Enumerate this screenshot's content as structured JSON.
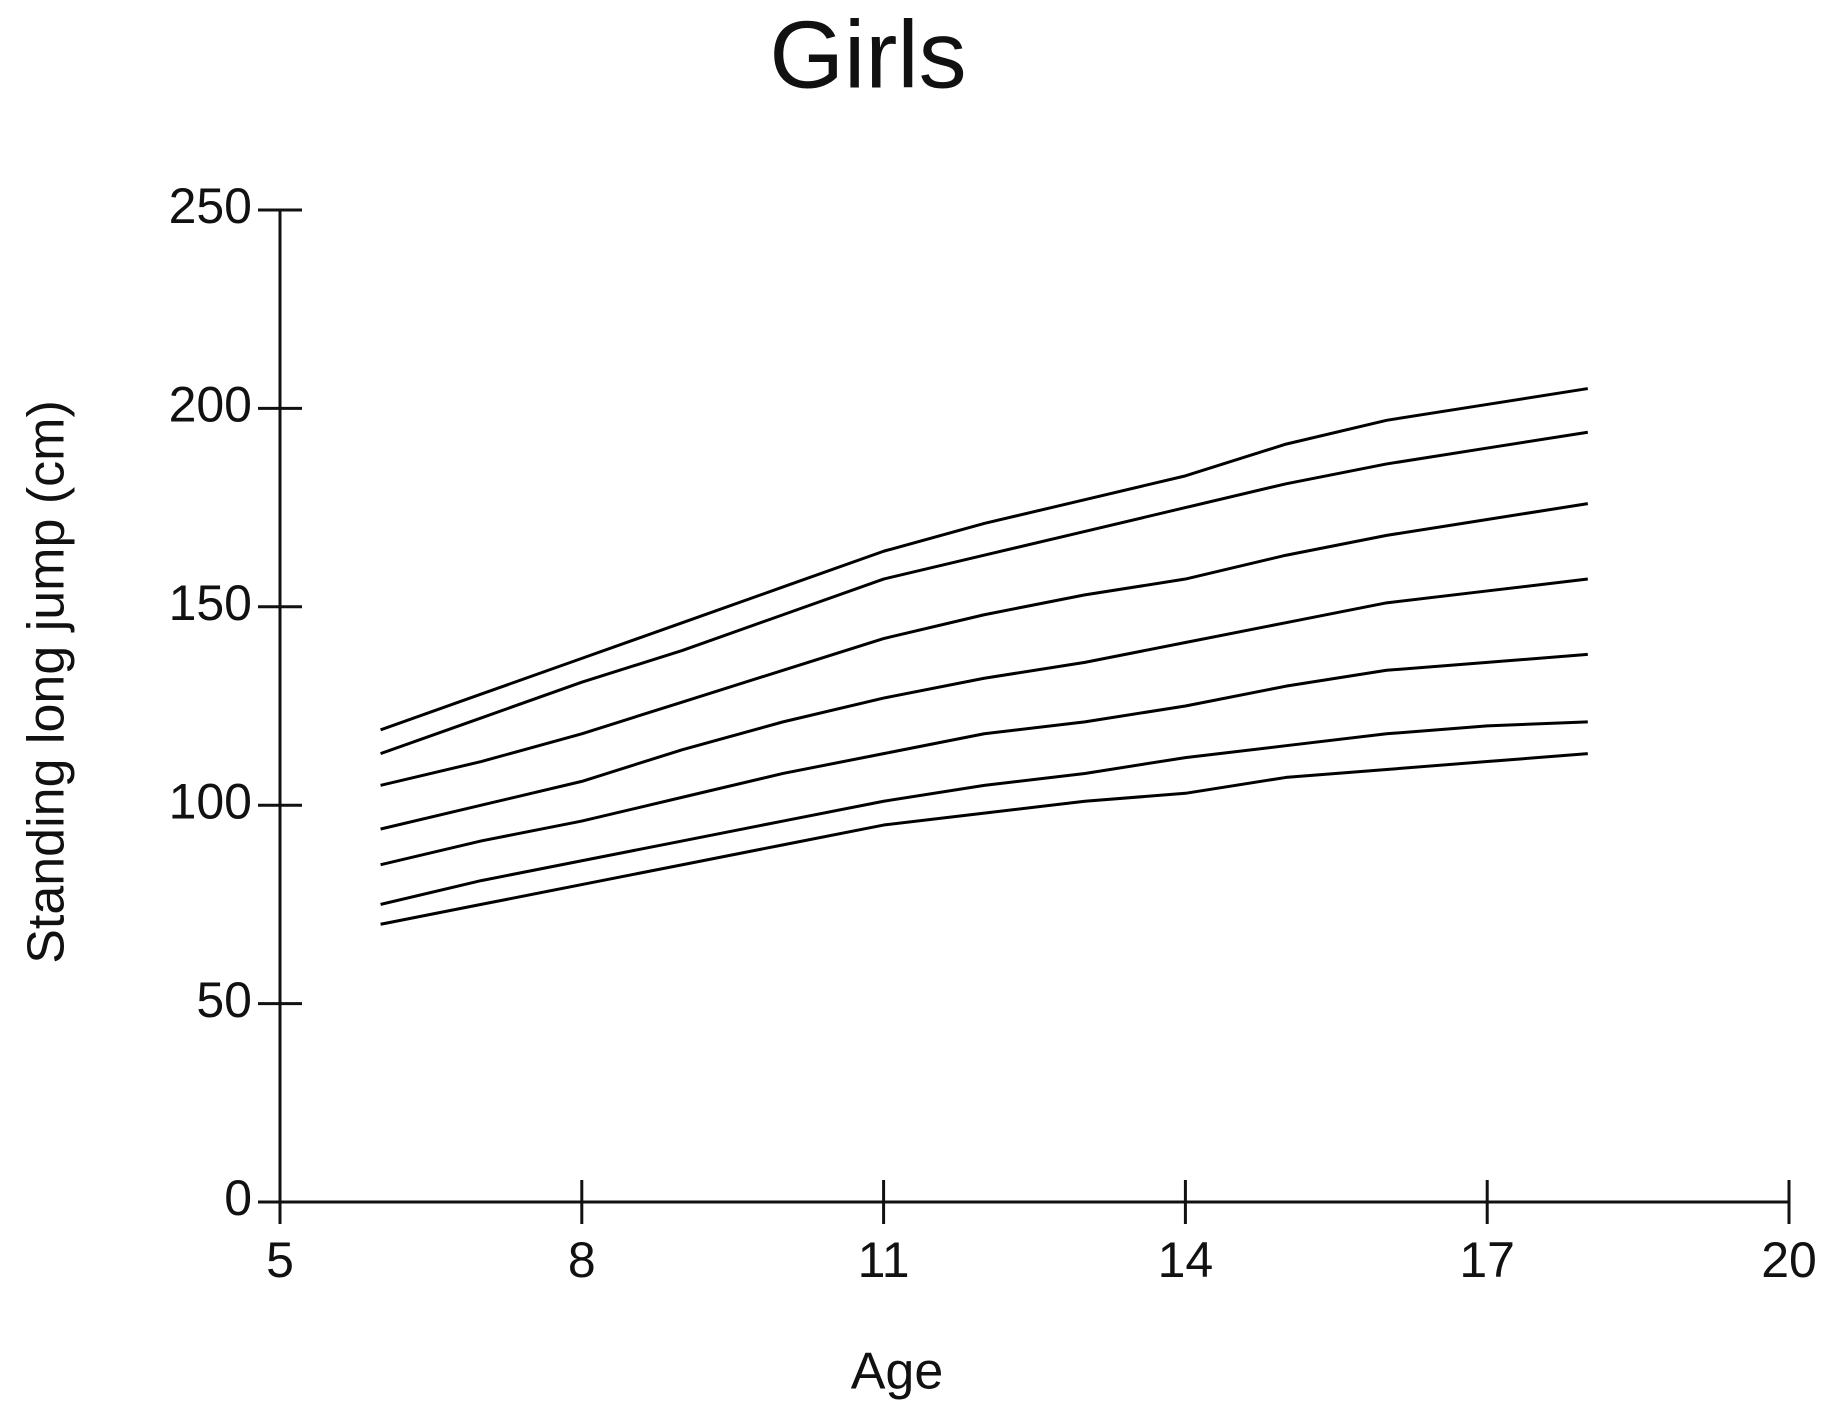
{
  "chart_data": {
    "type": "line",
    "title": "Girls",
    "x_label": "Age",
    "y_label": "Standing long jump (cm)",
    "x": [
      6,
      7,
      8,
      9,
      10,
      11,
      12,
      13,
      14,
      15,
      16,
      17,
      18
    ],
    "series": [
      {
        "color": "#000000",
        "values": [
          119,
          128,
          137,
          146,
          155,
          164,
          171,
          177,
          183,
          191,
          197,
          201,
          205
        ]
      },
      {
        "color": "#000000",
        "values": [
          113,
          122,
          131,
          139,
          148,
          157,
          163,
          169,
          175,
          181,
          186,
          190,
          194
        ]
      },
      {
        "color": "#000000",
        "values": [
          105,
          111,
          118,
          126,
          134,
          142,
          148,
          153,
          157,
          163,
          168,
          172,
          176
        ]
      },
      {
        "color": "#000000",
        "values": [
          94,
          100,
          106,
          114,
          121,
          127,
          132,
          136,
          141,
          146,
          151,
          154,
          157
        ]
      },
      {
        "color": "#000000",
        "values": [
          85,
          91,
          96,
          102,
          108,
          113,
          118,
          121,
          125,
          130,
          134,
          136,
          138
        ]
      },
      {
        "color": "#000000",
        "values": [
          75,
          81,
          86,
          91,
          96,
          101,
          105,
          108,
          112,
          115,
          118,
          120,
          121
        ]
      },
      {
        "color": "#000000",
        "values": [
          70,
          75,
          80,
          85,
          90,
          95,
          98,
          101,
          103,
          107,
          109,
          111,
          113
        ]
      }
    ],
    "xlim": [
      5,
      20
    ],
    "xticks": [
      5,
      8,
      11,
      14,
      17,
      20
    ],
    "ylim": [
      0,
      250
    ],
    "yticks": [
      0,
      50,
      100,
      150,
      200,
      250
    ],
    "grid": false
  }
}
